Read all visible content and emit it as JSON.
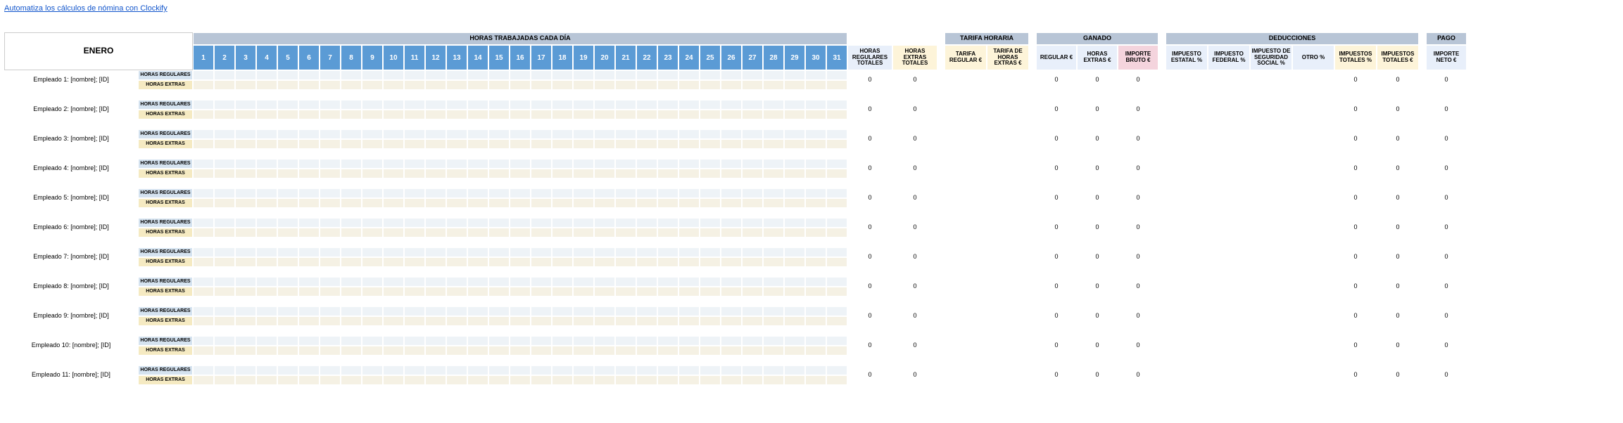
{
  "top_link": "Automatiza los cálculos de nómina con Clockify",
  "month": "ENERO",
  "sections": {
    "hours_worked": "HORAS TRABAJADAS CADA DÍA",
    "hourly_rate": "TARIFA HORARIA",
    "earned": "GANADO",
    "deductions": "DEDUCCIONES",
    "pay": "PAGO"
  },
  "days": [
    "1",
    "2",
    "3",
    "4",
    "5",
    "6",
    "7",
    "8",
    "9",
    "10",
    "11",
    "12",
    "13",
    "14",
    "15",
    "16",
    "17",
    "18",
    "19",
    "20",
    "21",
    "22",
    "23",
    "24",
    "25",
    "26",
    "27",
    "28",
    "29",
    "30",
    "31"
  ],
  "subheaders": {
    "total_reg_hours": "HORAS REGULARES TOTALES",
    "total_ot_hours": "HORAS EXTRAS TOTALES",
    "rate_reg": "TARIFA REGULAR €",
    "rate_ot": "TARIFA DE HORAS EXTRAS €",
    "earned_reg": "REGULAR €",
    "earned_ot": "HORAS EXTRAS €",
    "gross": "IMPORTE BRUTO €",
    "state_tax": "IMPUESTO ESTATAL %",
    "fed_tax": "IMPUESTO FEDERAL %",
    "ss_tax": "IMPUESTO DE SEGURIDAD SOCIAL %",
    "other": "OTRO %",
    "total_pct": "IMPUESTOS TOTALES %",
    "total_eur": "IMPUESTOS TOTALES €",
    "net": "IMPORTE NETO €"
  },
  "row_types": {
    "regular": "HORAS REGULARES",
    "overtime": "HORAS EXTRAS"
  },
  "colors": {
    "section_bg": "#b8c5d6",
    "day_bg": "#5b9bd5",
    "reg_hours_bg": "#eef3f7",
    "ot_hours_bg": "#f5f1e4",
    "sub_reg_total": "#e8effa",
    "sub_ot_total": "#fdf4d9",
    "sub_rate": "#fdf4d9",
    "sub_earned": "#e8effa",
    "sub_gross": "#f4d4dd",
    "sub_ded": "#e8effa",
    "sub_ded_tot": "#fdf4d9",
    "sub_net": "#e8effa",
    "row_reg_bg": "#d5e3f0",
    "row_ot_bg": "#f5eac2"
  },
  "employees": [
    {
      "name": "Empleado 1: [nombre]; [ID]"
    },
    {
      "name": "Empleado 2: [nombre]; [ID]"
    },
    {
      "name": "Empleado 3: [nombre]; [ID]"
    },
    {
      "name": "Empleado 4: [nombre]; [ID]"
    },
    {
      "name": "Empleado 5: [nombre]; [ID]"
    },
    {
      "name": "Empleado 6: [nombre]; [ID]"
    },
    {
      "name": "Empleado 7: [nombre]; [ID]"
    },
    {
      "name": "Empleado 8: [nombre]; [ID]"
    },
    {
      "name": "Empleado 9: [nombre]; [ID]"
    },
    {
      "name": "Empleado 10: [nombre]; [ID]"
    },
    {
      "name": "Empleado 11: [nombre]; [ID]"
    }
  ],
  "zero": "0",
  "col_widths": {
    "emp_name": 190,
    "row_type": 78,
    "day": 30,
    "total_hours": 64,
    "gap": 10,
    "rate": 60,
    "earned": 58,
    "ded": 60,
    "net": 58
  }
}
